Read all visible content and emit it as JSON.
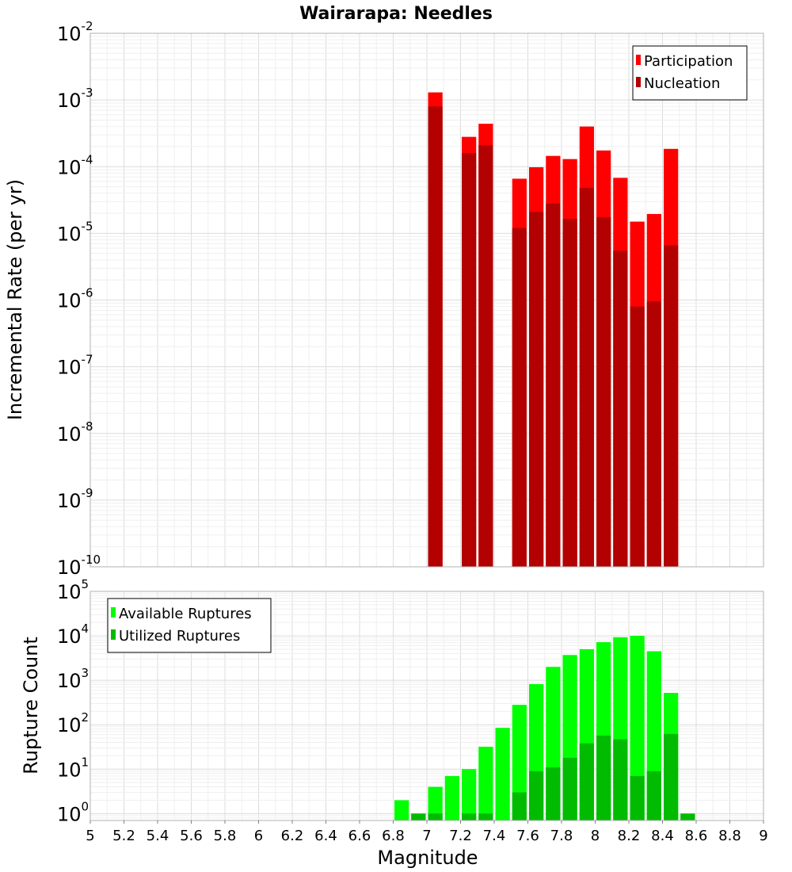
{
  "chart_data": [
    {
      "type": "bar",
      "title": "Wairarapa: Needles",
      "xlabel": "",
      "ylabel": "Incremental Rate (per yr)",
      "y_scale": "log",
      "ylim": [
        1e-10,
        0.01
      ],
      "xlim": [
        5,
        9
      ],
      "bin_width": 0.1,
      "grid": true,
      "legend_position": "top-right",
      "y_ticks": [
        {
          "base": "10",
          "exp": "-2",
          "value": 0.01
        },
        {
          "base": "10",
          "exp": "-3",
          "value": 0.001
        },
        {
          "base": "10",
          "exp": "-4",
          "value": 0.0001
        },
        {
          "base": "10",
          "exp": "-5",
          "value": 1e-05
        },
        {
          "base": "10",
          "exp": "-6",
          "value": 1e-06
        },
        {
          "base": "10",
          "exp": "-7",
          "value": 1e-07
        },
        {
          "base": "10",
          "exp": "-8",
          "value": 1e-08
        },
        {
          "base": "10",
          "exp": "-9",
          "value": 1e-09
        },
        {
          "base": "10",
          "exp": "-10",
          "value": 1e-10
        }
      ],
      "series": [
        {
          "name": "Participation",
          "color": "#ff0000",
          "x": [
            7.05,
            7.25,
            7.35,
            7.55,
            7.65,
            7.75,
            7.85,
            7.95,
            8.05,
            8.15,
            8.25,
            8.35,
            8.45
          ],
          "values": [
            0.0013,
            0.00028,
            0.00044,
            6.6e-05,
            9.8e-05,
            0.000145,
            0.00013,
            0.0004,
            0.000175,
            6.8e-05,
            1.5e-05,
            1.95e-05,
            0.000185
          ]
        },
        {
          "name": "Nucleation",
          "color": "#b30000",
          "x": [
            7.05,
            7.25,
            7.35,
            7.55,
            7.65,
            7.75,
            7.85,
            7.95,
            8.05,
            8.15,
            8.25,
            8.35,
            8.45
          ],
          "values": [
            0.0008,
            0.00016,
            0.00021,
            1.2e-05,
            2.1e-05,
            2.8e-05,
            1.65e-05,
            4.8e-05,
            1.75e-05,
            5.5e-06,
            8e-07,
            9.5e-07,
            6.6e-06
          ]
        }
      ]
    },
    {
      "type": "bar",
      "title": "",
      "xlabel": "Magnitude",
      "ylabel": "Rupture Count",
      "y_scale": "log",
      "ylim": [
        0.7,
        100000
      ],
      "xlim": [
        5,
        9
      ],
      "bin_width": 0.1,
      "grid": true,
      "legend_position": "top-left",
      "x_ticks": [
        "5",
        "5.2",
        "5.4",
        "5.6",
        "5.8",
        "6",
        "6.2",
        "6.4",
        "6.6",
        "6.8",
        "7",
        "7.2",
        "7.4",
        "7.6",
        "7.8",
        "8",
        "8.2",
        "8.4",
        "8.6",
        "8.8",
        "9"
      ],
      "y_ticks": [
        {
          "base": "10",
          "exp": "5",
          "value": 100000
        },
        {
          "base": "10",
          "exp": "4",
          "value": 10000
        },
        {
          "base": "10",
          "exp": "3",
          "value": 1000
        },
        {
          "base": "10",
          "exp": "2",
          "value": 100
        },
        {
          "base": "10",
          "exp": "1",
          "value": 10
        },
        {
          "base": "10",
          "exp": "0",
          "value": 1
        }
      ],
      "series": [
        {
          "name": "Available Ruptures",
          "color": "#00ff00",
          "x": [
            6.85,
            6.95,
            7.05,
            7.15,
            7.25,
            7.35,
            7.45,
            7.55,
            7.65,
            7.75,
            7.85,
            7.95,
            8.05,
            8.15,
            8.25,
            8.35,
            8.45,
            8.55
          ],
          "values": [
            2,
            1,
            4,
            7,
            10,
            32,
            85,
            280,
            820,
            2000,
            3700,
            5000,
            7200,
            9300,
            10000,
            4500,
            520,
            1
          ]
        },
        {
          "name": "Utilized Ruptures",
          "color": "#00bb00",
          "x": [
            6.95,
            7.05,
            7.25,
            7.35,
            7.55,
            7.65,
            7.75,
            7.85,
            7.95,
            8.05,
            8.15,
            8.25,
            8.35,
            8.45,
            8.55
          ],
          "values": [
            1,
            1,
            1,
            1,
            3,
            9,
            11,
            18,
            38,
            57,
            47,
            7,
            9,
            62,
            1
          ]
        }
      ]
    }
  ]
}
